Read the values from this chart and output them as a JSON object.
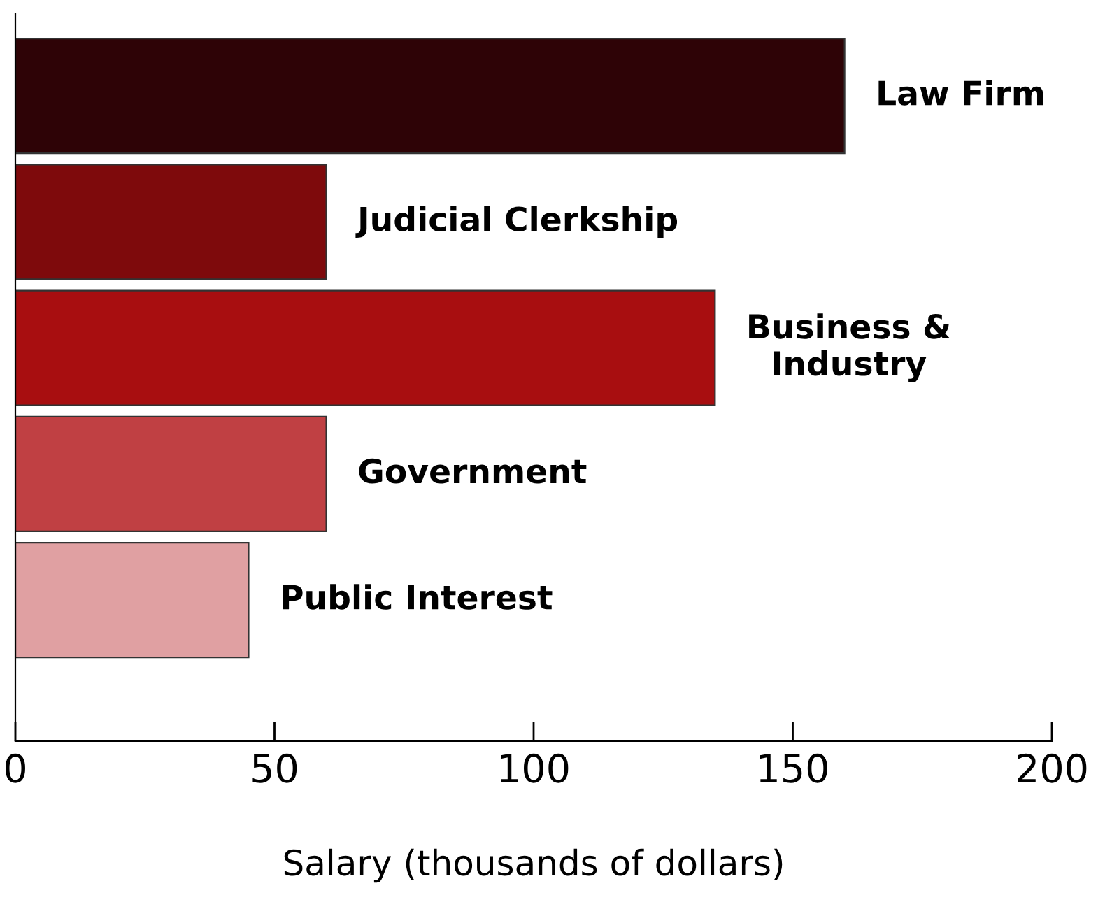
{
  "chart_data": {
    "type": "bar",
    "orientation": "horizontal",
    "xlabel": "Salary (thousands of dollars)",
    "categories": [
      "Law Firm",
      "Judicial Clerkship",
      "Business &\nIndustry",
      "Government",
      "Public Interest"
    ],
    "values": [
      160,
      60,
      135,
      60,
      45
    ],
    "colors": [
      "#2e0306",
      "#7e0a0c",
      "#a80e10",
      "#c04043",
      "#e0a0a2"
    ],
    "xlim": [
      0,
      200
    ],
    "xticks": [
      0,
      50,
      100,
      150,
      200
    ],
    "grid": false,
    "legend": false
  }
}
